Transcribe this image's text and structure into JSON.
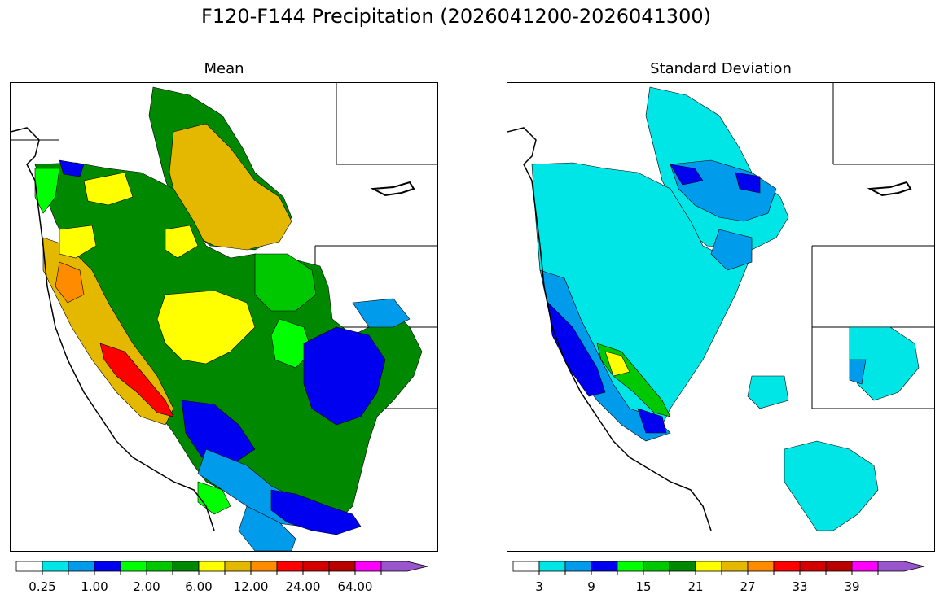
{
  "title": "F120-F144 Precipitation (2026041200-2026041300)",
  "panels": [
    {
      "name": "mean",
      "title": "Mean"
    },
    {
      "name": "std",
      "title": "Standard Deviation"
    }
  ],
  "colorbar": {
    "colors": [
      "#ffffff",
      "#00e5e5",
      "#009bea",
      "#0000f0",
      "#00ff00",
      "#00c800",
      "#008800",
      "#ffff00",
      "#e5b800",
      "#ff8c00",
      "#ff0000",
      "#d40000",
      "#b80000",
      "#ff00ff",
      "#9955cc"
    ],
    "mean_labels": [
      "0.25",
      "1.00",
      "2.00",
      "6.00",
      "12.00",
      "24.00",
      "64.00"
    ],
    "std_labels": [
      "3",
      "9",
      "15",
      "21",
      "27",
      "33",
      "39"
    ]
  }
}
